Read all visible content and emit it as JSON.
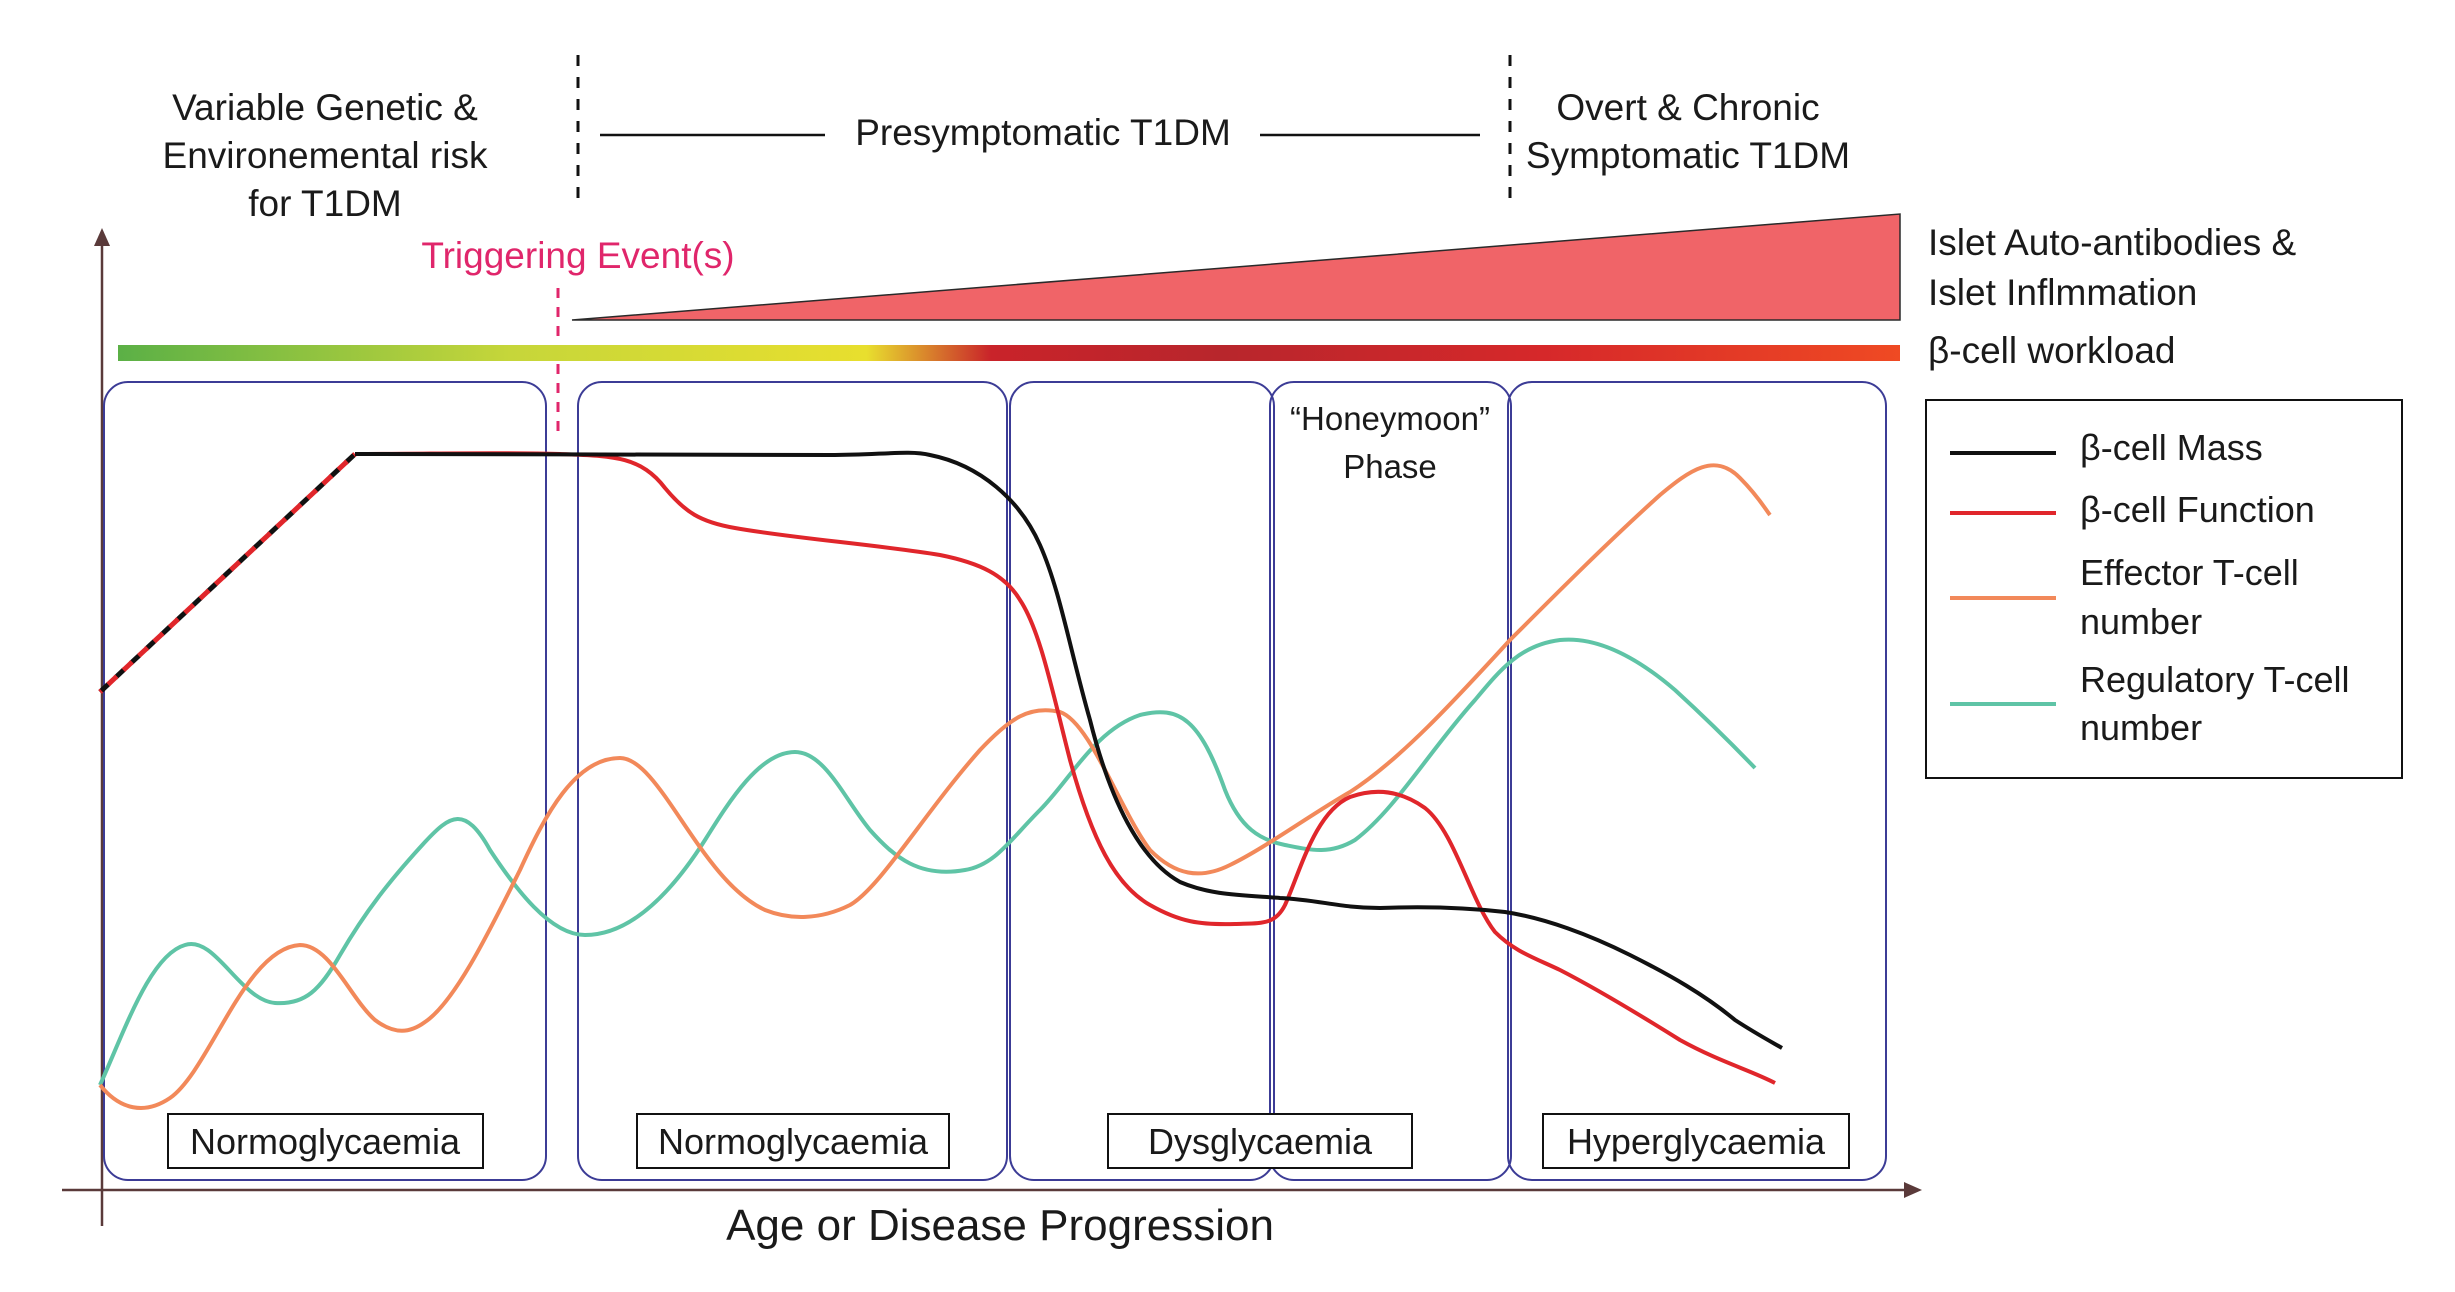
{
  "header": {
    "left_line1": "Variable Genetic &",
    "left_line2": "Environemental risk",
    "left_line3": "for T1DM",
    "middle": "Presymptomatic T1DM",
    "right_line1": "Overt & Chronic",
    "right_line2": "Symptomatic T1DM"
  },
  "trigger_label": "Triggering Event(s)",
  "side_labels": {
    "islet_line1": "Islet Auto-antibodies &",
    "islet_line2": "Islet Inflmmation",
    "workload": "β-cell workload"
  },
  "honeymoon": {
    "line1": "“Honeymoon”",
    "line2": "Phase"
  },
  "phases": [
    "Normoglycaemia",
    "Normoglycaemia",
    "Dysglycaemia",
    "Hyperglycaemia"
  ],
  "x_axis_label": "Age or Disease Progression",
  "legend": [
    {
      "name": "β-cell Mass",
      "color": "#111111"
    },
    {
      "name": "β-cell Function",
      "color": "#e0262b"
    },
    {
      "name_line1": "Effector T-cell",
      "name_line2": "number",
      "color": "#f2895a"
    },
    {
      "name_line1": "Regulatory T-cell",
      "name_line2": "number",
      "color": "#5fc4a6"
    }
  ],
  "colors": {
    "axis": "#5a3a3a",
    "trigger": "#e0266b",
    "wedge": "#f06468",
    "panel_border": "#3c3c96",
    "workload_gradient": [
      "#5bb046",
      "#c6d63a",
      "#e8df2e",
      "#c9232a",
      "#b8262c",
      "#d6282a",
      "#ef4a23"
    ]
  }
}
